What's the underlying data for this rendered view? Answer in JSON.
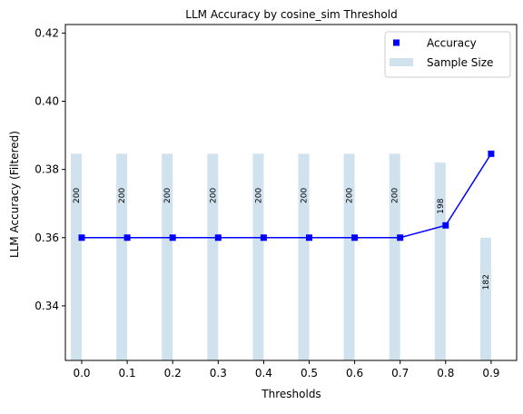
{
  "chart_data": {
    "type": "line",
    "title": "LLM Accuracy by cosine_sim Threshold",
    "xlabel": "Thresholds",
    "ylabel": "LLM Accuracy (Filtered)",
    "x": [
      0.0,
      0.1,
      0.2,
      0.3,
      0.4,
      0.5,
      0.6,
      0.7,
      0.8,
      0.9
    ],
    "x_tick_labels": [
      "0.0",
      "0.1",
      "0.2",
      "0.3",
      "0.4",
      "0.5",
      "0.6",
      "0.7",
      "0.8",
      "0.9"
    ],
    "ylim": [
      0.324,
      0.4225
    ],
    "y_ticks": [
      0.34,
      0.36,
      0.38,
      0.4,
      0.42
    ],
    "y_tick_labels": [
      "0.34",
      "0.36",
      "0.38",
      "0.40",
      "0.42"
    ],
    "grid": false,
    "legend_position": "top-right",
    "series": [
      {
        "name": "Accuracy",
        "kind": "line-with-square-markers",
        "color": "#0000ff",
        "values": [
          0.36,
          0.36,
          0.36,
          0.36,
          0.36,
          0.36,
          0.36,
          0.36,
          0.3636,
          0.3846
        ]
      },
      {
        "name": "Sample Size",
        "kind": "bar",
        "color": "#d0e2ee",
        "values": [
          200,
          200,
          200,
          200,
          200,
          200,
          200,
          200,
          198,
          182
        ],
        "bar_tops": [
          0.3846,
          0.3846,
          0.3846,
          0.3846,
          0.3846,
          0.3846,
          0.3846,
          0.3846,
          0.382,
          0.36
        ],
        "labels": [
          "200",
          "200",
          "200",
          "200",
          "200",
          "200",
          "200",
          "200",
          "198",
          "182"
        ]
      }
    ]
  }
}
